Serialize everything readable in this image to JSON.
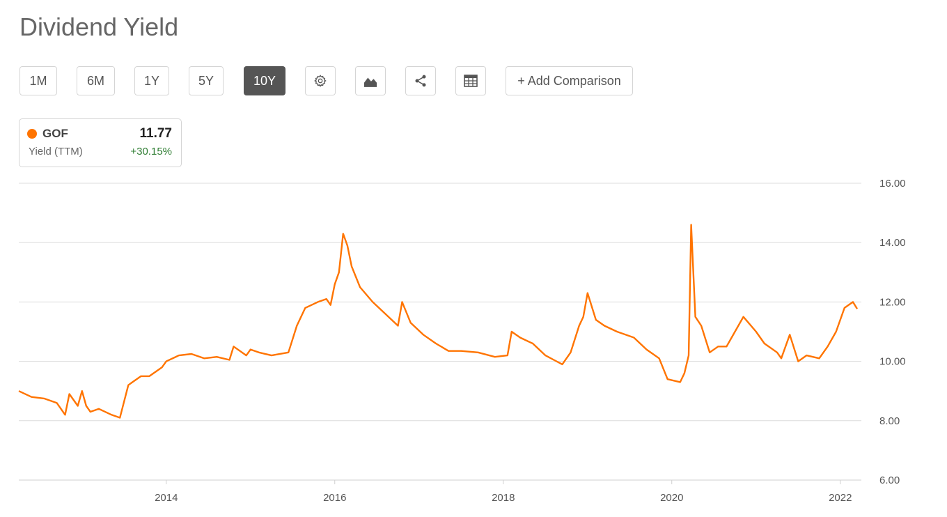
{
  "title": "Dividend Yield",
  "toolbar": {
    "ranges": [
      "1M",
      "6M",
      "1Y",
      "5Y",
      "10Y"
    ],
    "active_range": "10Y",
    "settings_icon": "gear-icon",
    "chart_type_icon": "area-chart-icon",
    "share_icon": "share-icon",
    "table_icon": "table-icon",
    "add_comparison": "+ Add Comparison"
  },
  "legend": {
    "ticker": "GOF",
    "value": "11.77",
    "label": "Yield (TTM)",
    "change": "+30.15%",
    "series_color": "#ff7400",
    "change_color": "#2e7d32"
  },
  "chart_data": {
    "type": "line",
    "title": "",
    "xlabel": "",
    "ylabel": "",
    "ylim": [
      6,
      16
    ],
    "xlim": [
      2012.25,
      2022.25
    ],
    "y_ticks": [
      "6.00",
      "8.00",
      "10.00",
      "12.00",
      "14.00",
      "16.00"
    ],
    "x_ticks": [
      "2014",
      "2016",
      "2018",
      "2020",
      "2022"
    ],
    "grid": true,
    "y_axis_side": "right",
    "series": [
      {
        "name": "GOF",
        "color": "#ff7400",
        "x": [
          2012.25,
          2012.4,
          2012.55,
          2012.7,
          2012.8,
          2012.85,
          2012.95,
          2013.0,
          2013.05,
          2013.1,
          2013.2,
          2013.35,
          2013.45,
          2013.55,
          2013.6,
          2013.7,
          2013.8,
          2013.95,
          2014.0,
          2014.15,
          2014.3,
          2014.45,
          2014.6,
          2014.75,
          2014.8,
          2014.95,
          2015.0,
          2015.1,
          2015.25,
          2015.45,
          2015.55,
          2015.65,
          2015.8,
          2015.9,
          2015.95,
          2016.0,
          2016.05,
          2016.1,
          2016.15,
          2016.2,
          2016.3,
          2016.45,
          2016.6,
          2016.75,
          2016.8,
          2016.9,
          2017.05,
          2017.2,
          2017.35,
          2017.5,
          2017.7,
          2017.9,
          2018.05,
          2018.1,
          2018.2,
          2018.35,
          2018.5,
          2018.6,
          2018.7,
          2018.8,
          2018.9,
          2018.95,
          2019.0,
          2019.1,
          2019.2,
          2019.35,
          2019.55,
          2019.7,
          2019.85,
          2019.95,
          2020.1,
          2020.15,
          2020.2,
          2020.23,
          2020.28,
          2020.35,
          2020.45,
          2020.55,
          2020.65,
          2020.75,
          2020.85,
          2021.0,
          2021.1,
          2021.25,
          2021.3,
          2021.4,
          2021.5,
          2021.6,
          2021.75,
          2021.85,
          2021.95,
          2022.05,
          2022.15,
          2022.2
        ],
        "y": [
          9.0,
          8.8,
          8.75,
          8.6,
          8.2,
          8.9,
          8.5,
          9.0,
          8.5,
          8.3,
          8.4,
          8.2,
          8.1,
          9.2,
          9.3,
          9.5,
          9.5,
          9.8,
          10.0,
          10.2,
          10.25,
          10.1,
          10.15,
          10.05,
          10.5,
          10.2,
          10.4,
          10.3,
          10.2,
          10.3,
          11.2,
          11.8,
          12.0,
          12.1,
          11.9,
          12.6,
          13.0,
          14.3,
          13.9,
          13.2,
          12.5,
          12.0,
          11.6,
          11.2,
          12.0,
          11.3,
          10.9,
          10.6,
          10.35,
          10.35,
          10.3,
          10.15,
          10.2,
          11.0,
          10.8,
          10.6,
          10.2,
          10.05,
          9.9,
          10.3,
          11.2,
          11.5,
          12.3,
          11.4,
          11.2,
          11.0,
          10.8,
          10.4,
          10.1,
          9.4,
          9.3,
          9.6,
          10.2,
          14.6,
          11.5,
          11.2,
          10.3,
          10.5,
          10.5,
          11.0,
          11.5,
          11.0,
          10.6,
          10.3,
          10.1,
          10.9,
          10.0,
          10.2,
          10.1,
          10.5,
          11.0,
          11.8,
          12.0,
          11.77
        ]
      }
    ]
  }
}
